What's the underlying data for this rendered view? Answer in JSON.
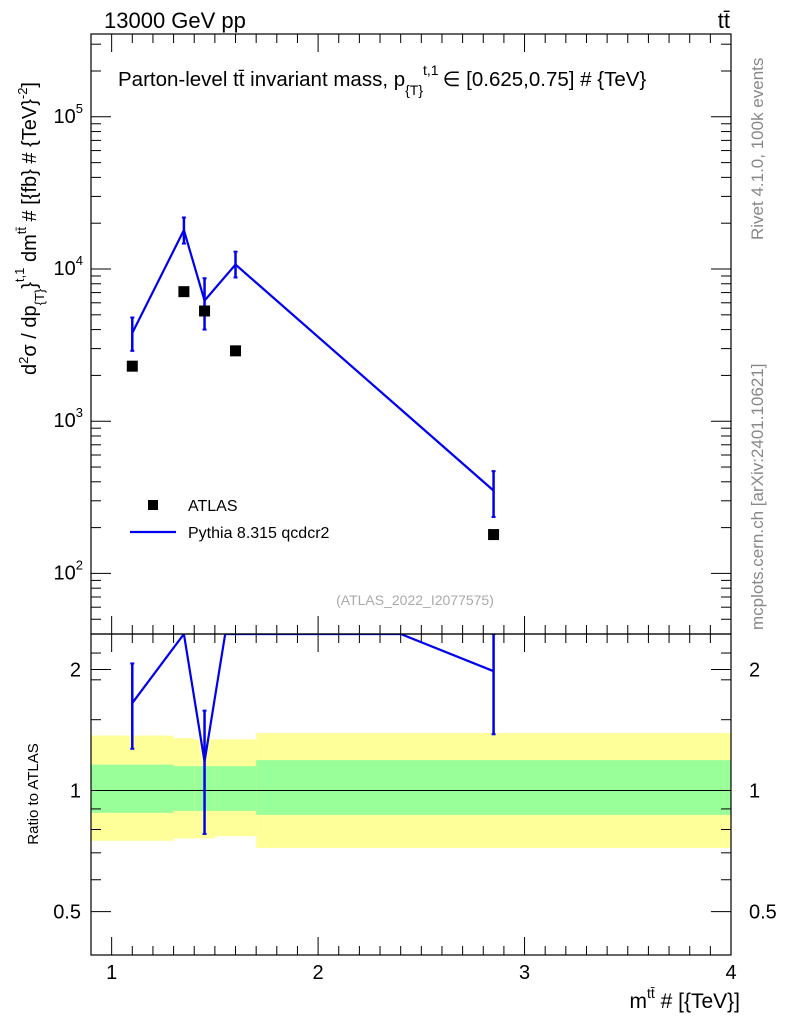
{
  "header": {
    "left": "13000 GeV pp",
    "right": "tt̄"
  },
  "side_labels": {
    "rivet": "Rivet 4.1.0,  100k events",
    "mcplots": "mcplots.cern.ch [arXiv:2401.10621]"
  },
  "colors": {
    "data": "#000000",
    "mc": "#0000ee",
    "band_inner": "#99ff99",
    "band_outer": "#ffff99"
  },
  "chart_data": [
    {
      "type": "scatter",
      "title": "Parton-level tt̄ invariant mass, p_{T}^{t,1} ∈ [0.625,0.75] # {TeV}",
      "title_main": "Parton-level tt̄ invariant mass, p",
      "title_sub": "{T}",
      "title_sup": "t,1",
      "title_tail": "∈ [0.625,0.75] # {TeV}",
      "ylabel": "d²σ / dp_{T}^{t,1} dm^{tt̄} # [{fb} # {TeV}^{-2}]",
      "ylabel_parts": {
        "a": "d",
        "a_sup": "2",
        "b": "σ / dp",
        "b_sub": "{T}",
        "b_sup": "t,1",
        "c": "}",
        "d": " dm",
        "d_sup": "tt̄",
        "e": " # [{fb} # {TeV}",
        "e_sup": "-2",
        "f": "]"
      },
      "yscale": "log",
      "xlim": [
        0.9,
        4.0
      ],
      "ylim": [
        40,
        350000
      ],
      "yticks": [
        100,
        1000,
        10000,
        100000
      ],
      "ytick_exponents": [
        "2",
        "3",
        "4",
        "5"
      ],
      "watermark": "(ATLAS_2022_I2077575)",
      "legend_position": "bottom-left",
      "series": [
        {
          "name": "ATLAS",
          "style": "markers",
          "x": [
            1.1,
            1.35,
            1.45,
            1.6,
            2.85
          ],
          "y": [
            2300,
            7100,
            5300,
            2900,
            180
          ]
        },
        {
          "name": "Pythia 8.315 qcdcr2",
          "style": "line",
          "x": [
            1.1,
            1.35,
            1.45,
            1.6,
            2.85
          ],
          "y": [
            3800,
            18000,
            6200,
            10700,
            350
          ],
          "yerr_low": [
            2900,
            14700,
            4000,
            8800,
            235
          ],
          "yerr_high": [
            4800,
            21800,
            8700,
            13000,
            470
          ]
        }
      ]
    },
    {
      "type": "line",
      "ylabel": "Ratio to ATLAS",
      "xlabel": "m^{tt̄} # [{TeV}]",
      "xlabel_main": "m",
      "xlabel_sup": "tt̄",
      "xlabel_tail": " # [{TeV}]",
      "xlim": [
        0.9,
        4.0
      ],
      "ylim": [
        0.39,
        2.45
      ],
      "xticks": [
        1,
        2,
        3,
        4
      ],
      "xtick_labels": [
        "1",
        "2",
        "3",
        "4"
      ],
      "yticks": [
        0.5,
        1,
        2
      ],
      "ytick_labels": [
        "0.5",
        "1",
        "2"
      ],
      "reference_line": 1,
      "bands": {
        "edges": [
          0.9,
          1.3,
          1.4,
          1.5,
          1.7,
          4.0
        ],
        "inner_low": [
          0.88,
          0.89,
          0.89,
          0.89,
          0.87
        ],
        "inner_high": [
          1.16,
          1.15,
          1.15,
          1.15,
          1.19
        ],
        "outer_low": [
          0.75,
          0.76,
          0.76,
          0.77,
          0.72
        ],
        "outer_high": [
          1.37,
          1.35,
          1.34,
          1.34,
          1.39
        ]
      },
      "series": [
        {
          "name": "Pythia 8.315 qcdcr2 / ATLAS",
          "x": [
            1.1,
            1.35,
            1.45,
            1.55,
            2.4,
            2.85
          ],
          "y": [
            1.65,
            2.45,
            1.18,
            2.45,
            2.45,
            1.98
          ],
          "err_x": [
            1.1,
            1.45,
            2.85
          ],
          "err_y": [
            1.65,
            1.18,
            1.98
          ],
          "err_low": [
            1.27,
            0.78,
            1.38
          ],
          "err_high": [
            2.07,
            1.58,
            2.45
          ]
        }
      ]
    }
  ]
}
